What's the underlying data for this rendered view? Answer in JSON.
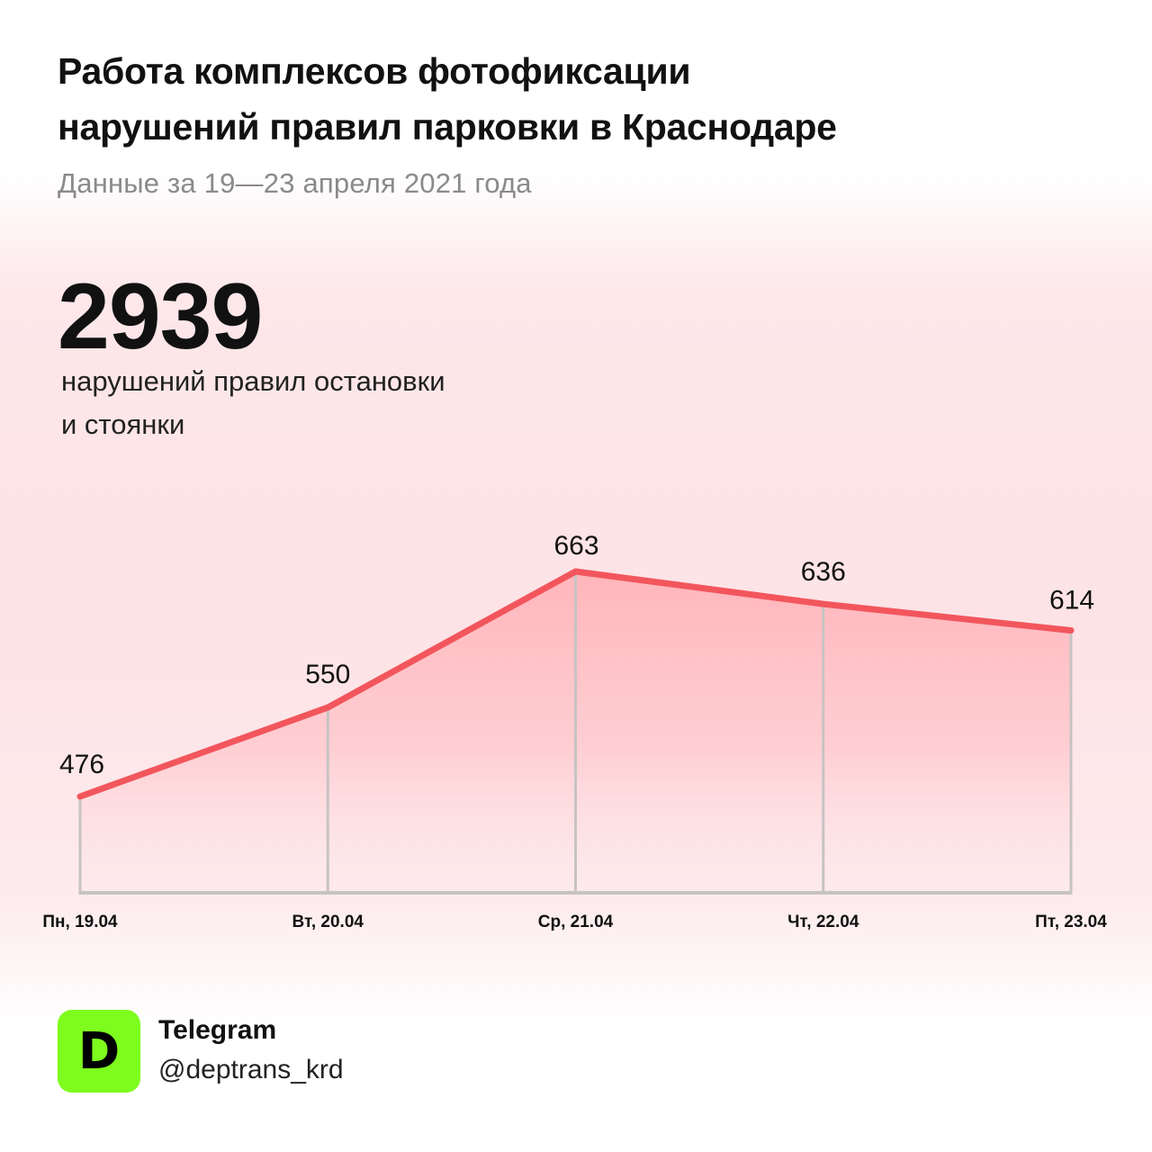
{
  "title_lines": [
    "Работа комплексов фотофиксации",
    "нарушений правил парковки в Краснодаре"
  ],
  "subtitle": "Данные за 19—23 апреля 2021 года",
  "total": {
    "value": "2939",
    "label_lines": [
      "нарушений правил остановки",
      "и стоянки"
    ]
  },
  "chart_data": {
    "type": "area",
    "categories": [
      "Пн, 19.04",
      "Вт, 20.04",
      "Ср, 21.04",
      "Чт, 22.04",
      "Пт, 23.04"
    ],
    "values": [
      476,
      550,
      663,
      636,
      614
    ],
    "data_labels": [
      "476",
      "550",
      "663",
      "636",
      "614"
    ],
    "title": "",
    "xlabel": "",
    "ylabel": "",
    "ylim": [
      400,
      700
    ],
    "grid": false,
    "line_color": "#f2565c",
    "fill_color": "#ffb3b9",
    "axis_color": "#c7c3c3"
  },
  "footer": {
    "logo_letter": "D",
    "logo_color": "#7dfc1e",
    "platform": "Telegram",
    "handle": "@deptrans_krd"
  }
}
